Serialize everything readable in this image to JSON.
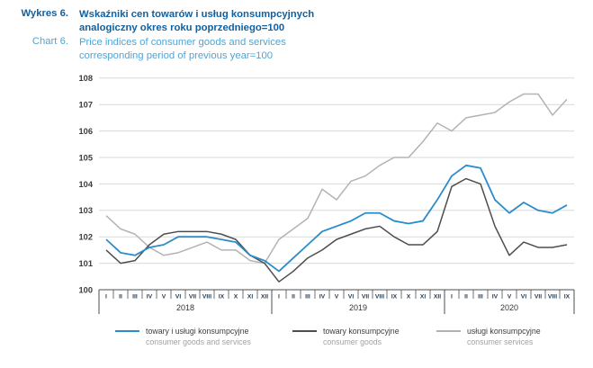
{
  "header": {
    "chart_label_pl": "Wykres 6.",
    "chart_label_en": "Chart 6.",
    "title_pl_line1": "Wskaźniki cen towarów i usług konsumpcyjnych",
    "title_pl_line2": "analogiczny okres roku poprzedniego=100",
    "title_en_line1": "Price indices of consumer goods and services",
    "title_en_line2": "corresponding period of previous year=100"
  },
  "colors": {
    "title_blue": "#11609f",
    "subtitle_blue": "#52a3d3",
    "grid": "#d9d9d9",
    "axis": "#4d4d4d",
    "tick_label": "#3d3d3d",
    "month_label": "#1f3d5c",
    "series_cpi": "#2b8cca",
    "series_goods": "#4d4d4d",
    "series_services": "#b3b3b3"
  },
  "chart_data": {
    "type": "line",
    "ylim": [
      100,
      108
    ],
    "yticks": [
      100,
      101,
      102,
      103,
      104,
      105,
      106,
      107,
      108
    ],
    "grid": true,
    "legend_position": "bottom",
    "x_axis": {
      "years": [
        {
          "label": "2018",
          "months": [
            "I",
            "II",
            "III",
            "IV",
            "V",
            "VI",
            "VII",
            "VIII",
            "IX",
            "X",
            "XI",
            "XII"
          ]
        },
        {
          "label": "2019",
          "months": [
            "I",
            "II",
            "III",
            "IV",
            "V",
            "VI",
            "VII",
            "VIII",
            "IX",
            "X",
            "XI",
            "XII"
          ]
        },
        {
          "label": "2020",
          "months": [
            "I",
            "II",
            "III",
            "IV",
            "V",
            "VI",
            "VII",
            "VIII",
            "IX"
          ]
        }
      ]
    },
    "series": [
      {
        "id": "cpi",
        "name_pl": "towary i usługi konsumpcyjne",
        "name_en": "consumer goods and services",
        "color": "#2b8cca",
        "values": [
          101.9,
          101.4,
          101.3,
          101.6,
          101.7,
          102.0,
          102.0,
          102.0,
          101.9,
          101.8,
          101.3,
          101.1,
          100.7,
          101.2,
          101.7,
          102.2,
          102.4,
          102.6,
          102.9,
          102.9,
          102.6,
          102.5,
          102.6,
          103.4,
          104.3,
          104.7,
          104.6,
          103.4,
          102.9,
          103.3,
          103.0,
          102.9,
          103.2
        ]
      },
      {
        "id": "goods",
        "name_pl": "towary konsumpcyjne",
        "name_en": "consumer goods",
        "color": "#4d4d4d",
        "values": [
          101.5,
          101.0,
          101.1,
          101.7,
          102.1,
          102.2,
          102.2,
          102.2,
          102.1,
          101.9,
          101.3,
          101.0,
          100.3,
          100.7,
          101.2,
          101.5,
          101.9,
          102.1,
          102.3,
          102.4,
          102.0,
          101.7,
          101.7,
          102.2,
          103.9,
          104.2,
          104.0,
          102.4,
          101.3,
          101.8,
          101.6,
          101.6,
          101.7
        ]
      },
      {
        "id": "services",
        "name_pl": "usługi konsumpcyjne",
        "name_en": "consumer services",
        "color": "#b3b3b3",
        "values": [
          102.8,
          102.3,
          102.1,
          101.6,
          101.3,
          101.4,
          101.6,
          101.8,
          101.5,
          101.5,
          101.1,
          101.0,
          101.9,
          102.3,
          102.7,
          103.8,
          103.4,
          104.1,
          104.3,
          104.7,
          105.0,
          105.0,
          105.6,
          106.3,
          106.0,
          106.5,
          106.6,
          106.7,
          107.1,
          107.4,
          107.4,
          106.6,
          107.2
        ]
      }
    ]
  }
}
